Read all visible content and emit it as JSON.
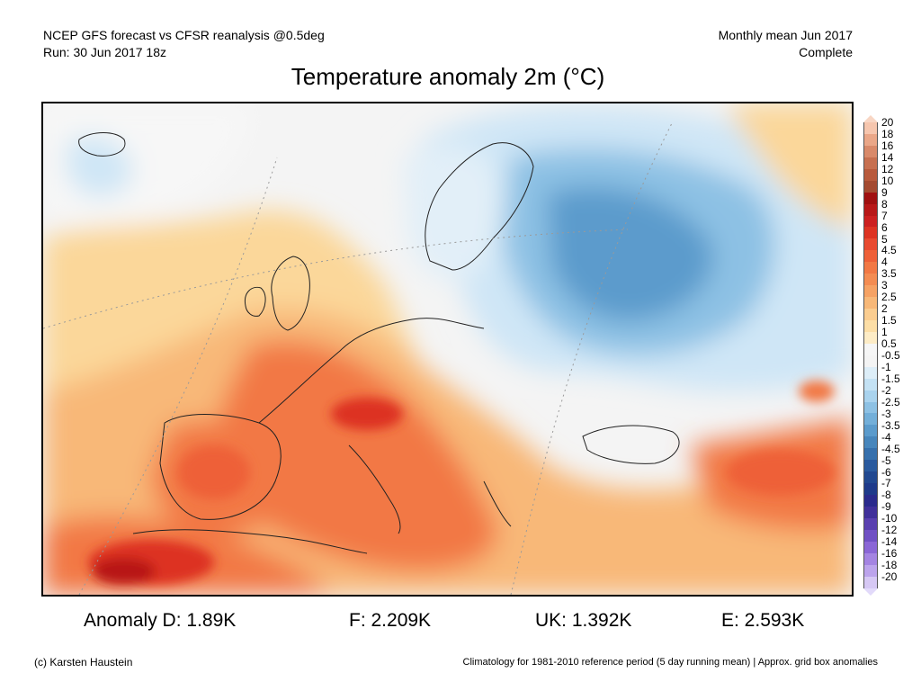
{
  "header": {
    "source": "NCEP GFS forecast vs CFSR reanalysis @0.5deg",
    "run": "Run: 30 Jun 2017 18z",
    "period": "Monthly mean Jun 2017",
    "status": "Complete"
  },
  "title": "Temperature anomaly 2m (°C)",
  "legend": {
    "labels": [
      "20",
      "18",
      "16",
      "14",
      "12",
      "10",
      "9",
      "8",
      "7",
      "6",
      "5",
      "4.5",
      "4",
      "3.5",
      "3",
      "2.5",
      "2",
      "1.5",
      "1",
      "0.5",
      "-0.5",
      "-1",
      "-1.5",
      "-2",
      "-2.5",
      "-3",
      "-3.5",
      "-4",
      "-4.5",
      "-5",
      "-6",
      "-7",
      "-8",
      "-9",
      "-10",
      "-12",
      "-14",
      "-16",
      "-18",
      "-20"
    ],
    "colors": [
      "#f6c6ae",
      "#eaa788",
      "#d98a6a",
      "#c77050",
      "#b85a3c",
      "#a44a30",
      "#a01010",
      "#b81818",
      "#cc2020",
      "#dd3322",
      "#e84a30",
      "#ee6038",
      "#f27844",
      "#f48c52",
      "#f6a264",
      "#f8b878",
      "#fbcd90",
      "#fcdea6",
      "#fdecc6",
      "#f6f6f6",
      "#f4f4f4",
      "#ddeef8",
      "#c4e2f4",
      "#a9d3ee",
      "#8dc1e4",
      "#73afd9",
      "#5b9bcc",
      "#4786bc",
      "#3670ad",
      "#2a5a9e",
      "#214890",
      "#1e3a8a",
      "#2a2a8c",
      "#40309a",
      "#5a40b0",
      "#7050c4",
      "#8a66d6",
      "#a484e2",
      "#bca4ec",
      "#d6c8f4"
    ],
    "top_color": "#f8d6c4",
    "bottom_color": "#e2dafa"
  },
  "map": {
    "colors": {
      "background": "#f4f4f4",
      "warm_light": "#fbd79a",
      "warm_mid": "#f8b878",
      "warm_strong": "#f27844",
      "hot": "#dd3322",
      "hottest": "#b81818",
      "cold_light": "#cfe6f6",
      "cold_mid": "#8dc1e4",
      "cold_strong": "#5b9bcc"
    }
  },
  "stats": {
    "anomaly_d": "Anomaly D: 1.89K",
    "anomaly_f": "F: 2.209K",
    "anomaly_uk": "UK: 1.392K",
    "anomaly_e": "E: 2.593K"
  },
  "footer": {
    "credit": "(c) Karsten Haustein",
    "note": "Climatology for 1981-2010 reference period (5 day running mean) | Approx. grid box anomalies"
  }
}
